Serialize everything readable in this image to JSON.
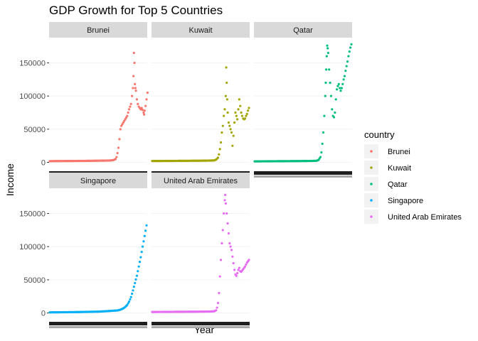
{
  "chart_data": {
    "type": "scatter",
    "title": "GDP Growth for Top 5 Countries",
    "xlabel": "Year",
    "ylabel": "Income",
    "ylim": [
      -8000,
      188000
    ],
    "yticks": [
      0,
      50000,
      100000,
      150000
    ],
    "ytick_labels": [
      "0",
      "50000",
      "100000",
      "150000"
    ],
    "legend_title": "country",
    "legend_position": "right",
    "facet_layout": "wrap-3-columns",
    "series": [
      {
        "name": "Brunei",
        "color": "#F8766D",
        "points": [
          [
            0,
            1800
          ],
          [
            0.05,
            1900
          ],
          [
            0.1,
            1950
          ],
          [
            0.15,
            2000
          ],
          [
            0.2,
            2050
          ],
          [
            0.25,
            2100
          ],
          [
            0.3,
            2150
          ],
          [
            0.35,
            2200
          ],
          [
            0.4,
            2300
          ],
          [
            0.45,
            2400
          ],
          [
            0.5,
            2500
          ],
          [
            0.55,
            2600
          ],
          [
            0.6,
            2700
          ],
          [
            0.63,
            2900
          ],
          [
            0.66,
            3500
          ],
          [
            0.68,
            5000
          ],
          [
            0.69,
            8000
          ],
          [
            0.7,
            14000
          ],
          [
            0.71,
            22000
          ],
          [
            0.72,
            35000
          ],
          [
            0.73,
            50000
          ],
          [
            0.74,
            55000
          ],
          [
            0.76,
            60000
          ],
          [
            0.78,
            65000
          ],
          [
            0.8,
            70000
          ],
          [
            0.82,
            80000
          ],
          [
            0.84,
            88000
          ],
          [
            0.85,
            100000
          ],
          [
            0.86,
            112000
          ],
          [
            0.865,
            130000
          ],
          [
            0.87,
            165000
          ],
          [
            0.875,
            150000
          ],
          [
            0.88,
            118000
          ],
          [
            0.885,
            112000
          ],
          [
            0.89,
            108000
          ],
          [
            0.9,
            95000
          ],
          [
            0.91,
            88000
          ],
          [
            0.92,
            84000
          ],
          [
            0.93,
            82000
          ],
          [
            0.94,
            80000
          ],
          [
            0.95,
            82000
          ],
          [
            0.96,
            79000
          ],
          [
            0.97,
            75000
          ],
          [
            0.975,
            72000
          ],
          [
            0.98,
            78000
          ],
          [
            0.99,
            85000
          ],
          [
            1.0,
            95000
          ],
          [
            1.01,
            105000
          ]
        ]
      },
      {
        "name": "Kuwait",
        "color": "#A3A500",
        "points": [
          [
            0,
            2000
          ],
          [
            0.1,
            2100
          ],
          [
            0.2,
            2200
          ],
          [
            0.3,
            2300
          ],
          [
            0.4,
            2400
          ],
          [
            0.5,
            2500
          ],
          [
            0.55,
            2600
          ],
          [
            0.6,
            2700
          ],
          [
            0.64,
            3000
          ],
          [
            0.66,
            4000
          ],
          [
            0.68,
            7000
          ],
          [
            0.69,
            12000
          ],
          [
            0.7,
            20000
          ],
          [
            0.71,
            30000
          ],
          [
            0.72,
            45000
          ],
          [
            0.73,
            55000
          ],
          [
            0.74,
            70000
          ],
          [
            0.75,
            80000
          ],
          [
            0.76,
            100000
          ],
          [
            0.765,
            143000
          ],
          [
            0.77,
            120000
          ],
          [
            0.775,
            95000
          ],
          [
            0.78,
            75000
          ],
          [
            0.79,
            60000
          ],
          [
            0.8,
            55000
          ],
          [
            0.81,
            50000
          ],
          [
            0.82,
            45000
          ],
          [
            0.83,
            25000
          ],
          [
            0.84,
            40000
          ],
          [
            0.85,
            60000
          ],
          [
            0.86,
            75000
          ],
          [
            0.87,
            70000
          ],
          [
            0.88,
            65000
          ],
          [
            0.89,
            80000
          ],
          [
            0.9,
            95000
          ],
          [
            0.91,
            85000
          ],
          [
            0.92,
            75000
          ],
          [
            0.93,
            70000
          ],
          [
            0.94,
            66000
          ],
          [
            0.95,
            65000
          ],
          [
            0.96,
            66000
          ],
          [
            0.97,
            70000
          ],
          [
            0.98,
            73000
          ],
          [
            0.99,
            78000
          ],
          [
            1.0,
            82000
          ]
        ]
      },
      {
        "name": "Qatar",
        "color": "#00BF7D",
        "points": [
          [
            0,
            1500
          ],
          [
            0.1,
            1600
          ],
          [
            0.2,
            1700
          ],
          [
            0.3,
            1800
          ],
          [
            0.4,
            1900
          ],
          [
            0.5,
            2000
          ],
          [
            0.55,
            2100
          ],
          [
            0.6,
            2200
          ],
          [
            0.64,
            2400
          ],
          [
            0.66,
            3500
          ],
          [
            0.68,
            8000
          ],
          [
            0.69,
            15000
          ],
          [
            0.7,
            28000
          ],
          [
            0.71,
            45000
          ],
          [
            0.72,
            70000
          ],
          [
            0.73,
            100000
          ],
          [
            0.735,
            120000
          ],
          [
            0.74,
            140000
          ],
          [
            0.745,
            160000
          ],
          [
            0.75,
            176000
          ],
          [
            0.755,
            172000
          ],
          [
            0.76,
            165000
          ],
          [
            0.77,
            140000
          ],
          [
            0.78,
            120000
          ],
          [
            0.79,
            100000
          ],
          [
            0.8,
            80000
          ],
          [
            0.81,
            70000
          ],
          [
            0.82,
            68000
          ],
          [
            0.83,
            75000
          ],
          [
            0.84,
            95000
          ],
          [
            0.85,
            110000
          ],
          [
            0.86,
            115000
          ],
          [
            0.87,
            118000
          ],
          [
            0.88,
            112000
          ],
          [
            0.89,
            108000
          ],
          [
            0.9,
            112000
          ],
          [
            0.91,
            118000
          ],
          [
            0.92,
            125000
          ],
          [
            0.93,
            130000
          ],
          [
            0.94,
            138000
          ],
          [
            0.95,
            145000
          ],
          [
            0.96,
            152000
          ],
          [
            0.97,
            160000
          ],
          [
            0.98,
            167000
          ],
          [
            0.99,
            173000
          ],
          [
            1.0,
            178000
          ]
        ]
      },
      {
        "name": "Singapore",
        "color": "#00B0F6",
        "points": [
          [
            0,
            900
          ],
          [
            0.1,
            1000
          ],
          [
            0.2,
            1200
          ],
          [
            0.3,
            1400
          ],
          [
            0.4,
            1700
          ],
          [
            0.5,
            2000
          ],
          [
            0.55,
            2400
          ],
          [
            0.6,
            2800
          ],
          [
            0.65,
            3300
          ],
          [
            0.7,
            3800
          ],
          [
            0.72,
            4500
          ],
          [
            0.74,
            5500
          ],
          [
            0.76,
            7000
          ],
          [
            0.78,
            9000
          ],
          [
            0.8,
            12000
          ],
          [
            0.82,
            17000
          ],
          [
            0.84,
            24000
          ],
          [
            0.86,
            34000
          ],
          [
            0.88,
            45000
          ],
          [
            0.9,
            56000
          ],
          [
            0.91,
            63000
          ],
          [
            0.92,
            70000
          ],
          [
            0.93,
            77000
          ],
          [
            0.94,
            84000
          ],
          [
            0.95,
            92000
          ],
          [
            0.96,
            100000
          ],
          [
            0.97,
            108000
          ],
          [
            0.98,
            116000
          ],
          [
            0.99,
            124000
          ],
          [
            1.0,
            132000
          ]
        ]
      },
      {
        "name": "United Arab Emirates",
        "color": "#E76BF3",
        "points": [
          [
            0,
            1500
          ],
          [
            0.1,
            1600
          ],
          [
            0.2,
            1700
          ],
          [
            0.3,
            1800
          ],
          [
            0.4,
            1900
          ],
          [
            0.5,
            2000
          ],
          [
            0.55,
            2100
          ],
          [
            0.6,
            2200
          ],
          [
            0.64,
            2500
          ],
          [
            0.66,
            4000
          ],
          [
            0.67,
            8000
          ],
          [
            0.68,
            15000
          ],
          [
            0.69,
            30000
          ],
          [
            0.7,
            55000
          ],
          [
            0.71,
            80000
          ],
          [
            0.72,
            105000
          ],
          [
            0.73,
            125000
          ],
          [
            0.74,
            150000
          ],
          [
            0.75,
            170000
          ],
          [
            0.755,
            178000
          ],
          [
            0.76,
            165000
          ],
          [
            0.77,
            150000
          ],
          [
            0.78,
            135000
          ],
          [
            0.79,
            120000
          ],
          [
            0.8,
            105000
          ],
          [
            0.81,
            100000
          ],
          [
            0.82,
            95000
          ],
          [
            0.83,
            85000
          ],
          [
            0.84,
            75000
          ],
          [
            0.85,
            65000
          ],
          [
            0.86,
            58000
          ],
          [
            0.87,
            56000
          ],
          [
            0.88,
            60000
          ],
          [
            0.89,
            65000
          ],
          [
            0.9,
            68000
          ],
          [
            0.91,
            63000
          ],
          [
            0.92,
            62000
          ],
          [
            0.93,
            64000
          ],
          [
            0.94,
            66000
          ],
          [
            0.95,
            68000
          ],
          [
            0.96,
            70000
          ],
          [
            0.97,
            73000
          ],
          [
            0.98,
            76000
          ],
          [
            0.99,
            78000
          ],
          [
            1.0,
            80000
          ]
        ]
      }
    ]
  }
}
